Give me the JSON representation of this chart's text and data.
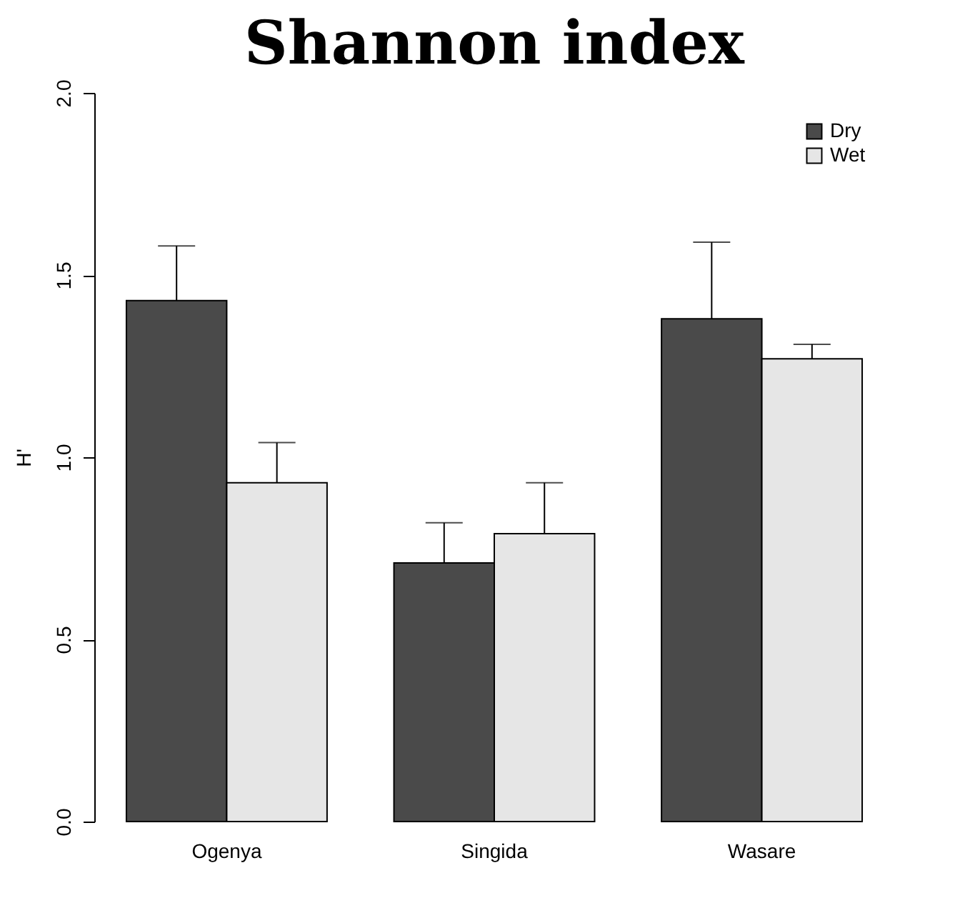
{
  "chart_data": {
    "type": "bar",
    "title": "Shannon index",
    "ylabel": "H'",
    "categories": [
      "Ogenya",
      "Singida",
      "Wasare"
    ],
    "series": [
      {
        "name": "Dry",
        "color": "#4a4a4a",
        "values": [
          1.43,
          0.71,
          1.38
        ],
        "errors": [
          [
            1.43,
            1.58
          ],
          [
            0.71,
            0.82
          ],
          [
            1.38,
            1.59
          ]
        ]
      },
      {
        "name": "Wet",
        "color": "#e6e6e6",
        "values": [
          0.93,
          0.79,
          1.27
        ],
        "errors": [
          [
            0.93,
            1.04
          ],
          [
            0.79,
            0.93
          ],
          [
            1.27,
            1.31
          ]
        ]
      }
    ],
    "ylim": [
      0,
      2
    ],
    "yticks": [
      {
        "value": 0,
        "label": "0.0"
      },
      {
        "value": 0.5,
        "label": "0.5"
      },
      {
        "value": 1,
        "label": "1.0"
      },
      {
        "value": 1.5,
        "label": "1.5"
      },
      {
        "value": 2,
        "label": "2.0"
      }
    ],
    "legend": "top right",
    "grid": false
  }
}
